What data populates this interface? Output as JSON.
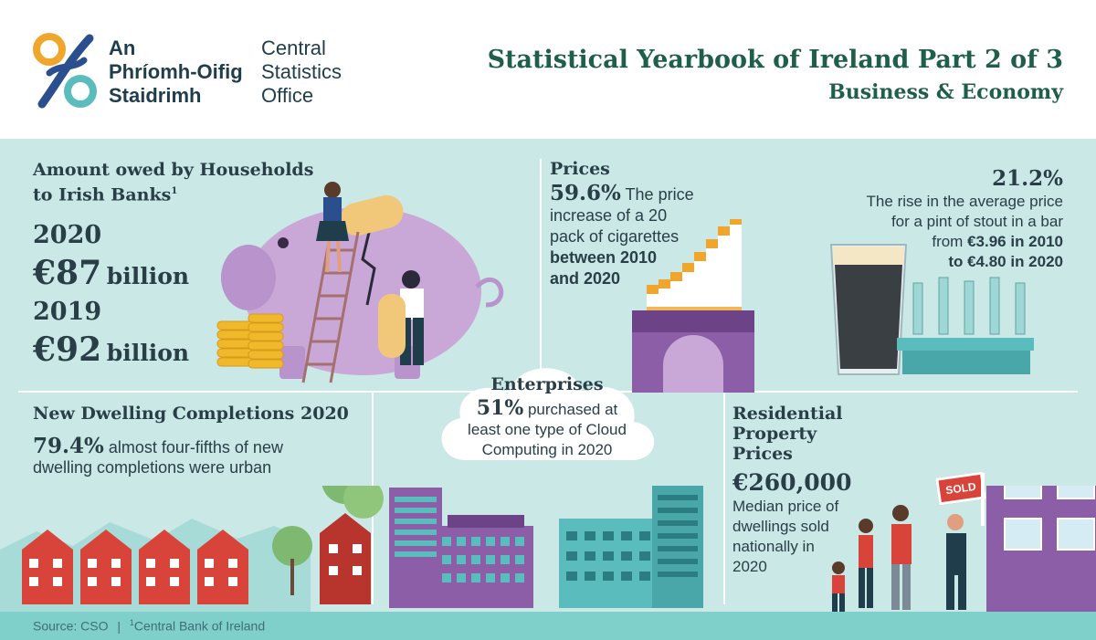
{
  "header": {
    "logo_line1": "An",
    "logo_line2": "Phríomh-Oifig",
    "logo_line3": "Staidrimh",
    "logo_en_line1": "Central",
    "logo_en_line2": "Statistics",
    "logo_en_line3": "Office",
    "title": "Statistical Yearbook of Ireland Part 2 of 3",
    "subtitle": "Business & Economy"
  },
  "households": {
    "heading_line1": "Amount owed by Households",
    "heading_line2": "to Irish Banks",
    "footnote_mark": "1",
    "year1": "2020",
    "amount1": "€87",
    "unit1": "billion",
    "year2": "2019",
    "amount2": "€92",
    "unit2": "billion"
  },
  "prices": {
    "heading": "Prices",
    "cig_pct": "59.6%",
    "cig_text1": " The price",
    "cig_text2": "increase of a 20",
    "cig_text3": "pack of cigarettes",
    "cig_text4": "between 2010",
    "cig_text5": "and 2020",
    "stout_pct": "21.2%",
    "stout_text1": "The rise in the average price",
    "stout_text2": "for a pint of stout in a bar",
    "stout_text3_a": "from ",
    "stout_text3_b": "€3.96 in 2010",
    "stout_text4": "to €4.80 in 2020"
  },
  "dwellings": {
    "heading": "New Dwelling Completions 2020",
    "pct": "79.4%",
    "text1": " almost four-fifths of new",
    "text2": "dwelling completions were urban"
  },
  "enterprises": {
    "heading": "Enterprises",
    "pct": "51%",
    "text1": " purchased at",
    "text2": "least one type of Cloud",
    "text3": "Computing in 2020"
  },
  "property": {
    "heading_line1": "Residential",
    "heading_line2": "Property",
    "heading_line3": "Prices",
    "amount": "€260,000",
    "text1": "Median price of",
    "text2": "dwellings sold",
    "text3": "nationally in",
    "text4": "2020",
    "sign": "SOLD"
  },
  "footer": {
    "source": "Source: CSO",
    "separator": "|",
    "note_mark": "1",
    "note": "Central Bank of Ireland"
  },
  "colors": {
    "header_title": "#1f5e4b",
    "background": "#c9e8e6",
    "purple": "#8c5ea8",
    "red": "#d9443a",
    "teal": "#5bbcbd",
    "orange": "#f0a62c"
  }
}
